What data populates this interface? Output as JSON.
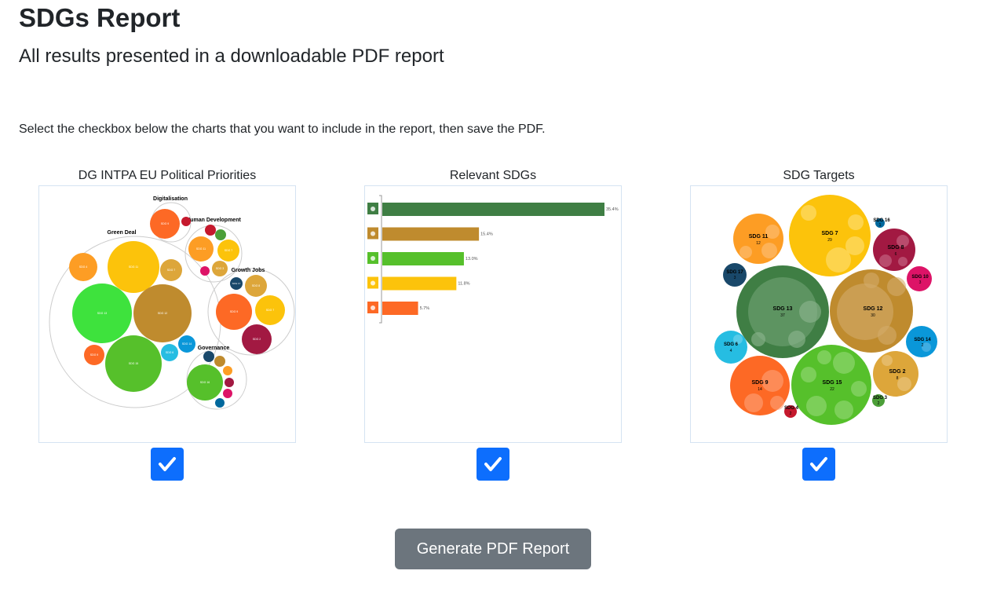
{
  "header": {
    "title": "SDGs Report",
    "subtitle": "All results presented in a downloadable PDF report",
    "instructions": "Select the checkbox below the charts that you want to include in the report, then save the PDF."
  },
  "cards": [
    {
      "title": "DG INTPA EU Political Priorities",
      "checked": true
    },
    {
      "title": "Relevant SDGs",
      "checked": true
    },
    {
      "title": "SDG Targets",
      "checked": true
    }
  ],
  "colors": {
    "accent": "#0d6efd",
    "button": "#6c757d",
    "sdg_green_13": "#3f7e44",
    "sdg_brown_12": "#bf8b2e",
    "sdg_green_15": "#56c02b",
    "sdg_yellow_7": "#fcc30b",
    "sdg_orange_9": "#fd6925",
    "sdg_orange_11": "#fd9d24",
    "sdg_red_3": "#4c9f38",
    "sdg_maroon_8": "#a21942",
    "sdg_pink_10": "#dd1367",
    "sdg_navy_17": "#19486a",
    "sdg_blue_14": "#0a97d9",
    "sdg_cyan_6": "#26bde2",
    "sdg_gold_2": "#dda63a",
    "sdg_red_4": "#c5192d",
    "sdg_blue_16": "#00689d"
  },
  "charts": {
    "priorities": {
      "groups": [
        "Digitalisation",
        "Human Development",
        "Green Deal",
        "Growth Jobs",
        "Governance"
      ],
      "bubble_labels": [
        "SDG 9",
        "SDG 11",
        "SDG 7",
        "SDG 3",
        "SDG 4",
        "SDG 11",
        "SDG 7",
        "SDG 12",
        "SDG 13",
        "SDG 15",
        "SDG 9",
        "SDG 6",
        "SDG 14",
        "SDG 17",
        "SDG 8",
        "SDG 9",
        "SDG 7",
        "SDG 2",
        "SDG 16"
      ]
    },
    "bubbles": {
      "items": [
        {
          "label": "SDG 11",
          "count": "12"
        },
        {
          "label": "SDG 7",
          "count": "29"
        },
        {
          "label": "SDG 16",
          "count": "1"
        },
        {
          "label": "SDG 8",
          "count": "6"
        },
        {
          "label": "SDG 17",
          "count": "3"
        },
        {
          "label": "SDG 10",
          "count": "3"
        },
        {
          "label": "SDG 13",
          "count": "37"
        },
        {
          "label": "SDG 12",
          "count": "30"
        },
        {
          "label": "SDG 6",
          "count": "4"
        },
        {
          "label": "SDG 14",
          "count": "2"
        },
        {
          "label": "SDG 9",
          "count": "14"
        },
        {
          "label": "SDG 15",
          "count": "22"
        },
        {
          "label": "SDG 2",
          "count": "8"
        },
        {
          "label": "SDG 4",
          "count": "2"
        },
        {
          "label": "SDG 3",
          "count": "2"
        }
      ]
    }
  },
  "chart_data": {
    "type": "bar",
    "orientation": "horizontal",
    "categories": [
      "SDG 13",
      "SDG 12",
      "SDG 15",
      "SDG 7",
      "SDG 9"
    ],
    "values": [
      35.4,
      15.4,
      13.0,
      11.8,
      5.7
    ],
    "value_labels": [
      "35.4%",
      "15.4%",
      "13.0%",
      "11.8%",
      "5.7%"
    ],
    "bar_colors": [
      "#3f7e44",
      "#bf8b2e",
      "#56c02b",
      "#fcc30b",
      "#fd6925"
    ],
    "xlim": [
      0,
      40
    ]
  },
  "footer": {
    "generate_label": "Generate PDF Report"
  }
}
